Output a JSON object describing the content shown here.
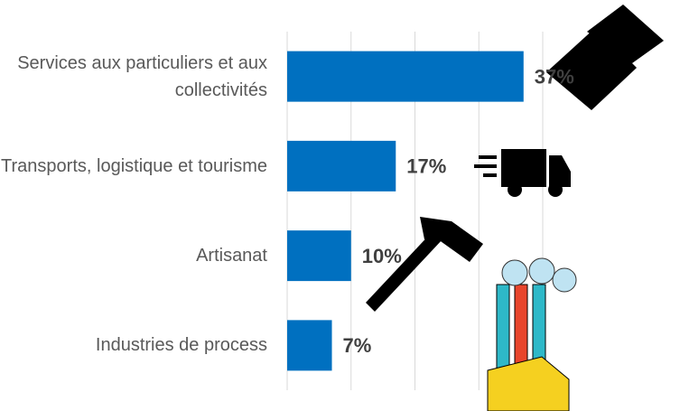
{
  "chart_data": {
    "type": "bar",
    "orientation": "horizontal",
    "categories": [
      "Services aux particuliers et aux collectivités",
      "Transports, logistique et tourisme",
      "Artisanat",
      "Industries de process"
    ],
    "values": [
      37,
      17,
      10,
      7
    ],
    "value_labels": [
      "37%",
      "17%",
      "10%",
      "7%"
    ],
    "color": "#0070c0",
    "xlim": [
      0,
      40
    ],
    "xticks": [
      0,
      10,
      20,
      30,
      40
    ],
    "grid": true
  }
}
